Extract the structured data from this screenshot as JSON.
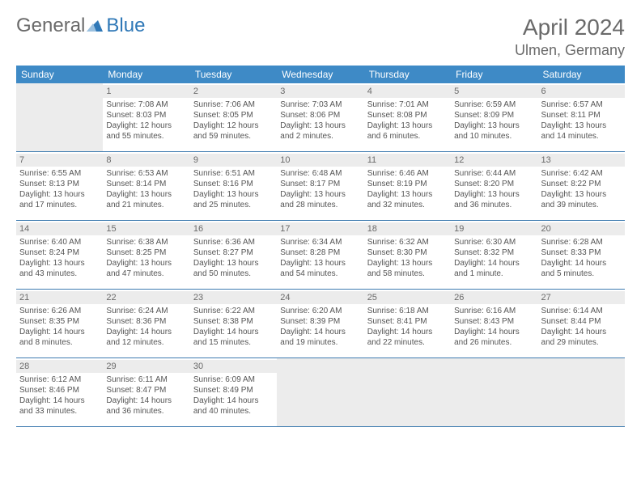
{
  "logo": {
    "text1": "General",
    "text2": "Blue"
  },
  "title": "April 2024",
  "location": "Ulmen, Germany",
  "weekdays": [
    "Sunday",
    "Monday",
    "Tuesday",
    "Wednesday",
    "Thursday",
    "Friday",
    "Saturday"
  ],
  "colors": {
    "header_bg": "#3e8ac6",
    "header_text": "#ffffff",
    "rule": "#3e7bb0",
    "daynum_bg": "#ececec",
    "text": "#555555",
    "logo_gray": "#6a6a6a",
    "logo_blue": "#2f78b7"
  },
  "weeks": [
    [
      {
        "empty": true
      },
      {
        "day": "1",
        "sunrise": "Sunrise: 7:08 AM",
        "sunset": "Sunset: 8:03 PM",
        "daylight1": "Daylight: 12 hours",
        "daylight2": "and 55 minutes."
      },
      {
        "day": "2",
        "sunrise": "Sunrise: 7:06 AM",
        "sunset": "Sunset: 8:05 PM",
        "daylight1": "Daylight: 12 hours",
        "daylight2": "and 59 minutes."
      },
      {
        "day": "3",
        "sunrise": "Sunrise: 7:03 AM",
        "sunset": "Sunset: 8:06 PM",
        "daylight1": "Daylight: 13 hours",
        "daylight2": "and 2 minutes."
      },
      {
        "day": "4",
        "sunrise": "Sunrise: 7:01 AM",
        "sunset": "Sunset: 8:08 PM",
        "daylight1": "Daylight: 13 hours",
        "daylight2": "and 6 minutes."
      },
      {
        "day": "5",
        "sunrise": "Sunrise: 6:59 AM",
        "sunset": "Sunset: 8:09 PM",
        "daylight1": "Daylight: 13 hours",
        "daylight2": "and 10 minutes."
      },
      {
        "day": "6",
        "sunrise": "Sunrise: 6:57 AM",
        "sunset": "Sunset: 8:11 PM",
        "daylight1": "Daylight: 13 hours",
        "daylight2": "and 14 minutes."
      }
    ],
    [
      {
        "day": "7",
        "sunrise": "Sunrise: 6:55 AM",
        "sunset": "Sunset: 8:13 PM",
        "daylight1": "Daylight: 13 hours",
        "daylight2": "and 17 minutes."
      },
      {
        "day": "8",
        "sunrise": "Sunrise: 6:53 AM",
        "sunset": "Sunset: 8:14 PM",
        "daylight1": "Daylight: 13 hours",
        "daylight2": "and 21 minutes."
      },
      {
        "day": "9",
        "sunrise": "Sunrise: 6:51 AM",
        "sunset": "Sunset: 8:16 PM",
        "daylight1": "Daylight: 13 hours",
        "daylight2": "and 25 minutes."
      },
      {
        "day": "10",
        "sunrise": "Sunrise: 6:48 AM",
        "sunset": "Sunset: 8:17 PM",
        "daylight1": "Daylight: 13 hours",
        "daylight2": "and 28 minutes."
      },
      {
        "day": "11",
        "sunrise": "Sunrise: 6:46 AM",
        "sunset": "Sunset: 8:19 PM",
        "daylight1": "Daylight: 13 hours",
        "daylight2": "and 32 minutes."
      },
      {
        "day": "12",
        "sunrise": "Sunrise: 6:44 AM",
        "sunset": "Sunset: 8:20 PM",
        "daylight1": "Daylight: 13 hours",
        "daylight2": "and 36 minutes."
      },
      {
        "day": "13",
        "sunrise": "Sunrise: 6:42 AM",
        "sunset": "Sunset: 8:22 PM",
        "daylight1": "Daylight: 13 hours",
        "daylight2": "and 39 minutes."
      }
    ],
    [
      {
        "day": "14",
        "sunrise": "Sunrise: 6:40 AM",
        "sunset": "Sunset: 8:24 PM",
        "daylight1": "Daylight: 13 hours",
        "daylight2": "and 43 minutes."
      },
      {
        "day": "15",
        "sunrise": "Sunrise: 6:38 AM",
        "sunset": "Sunset: 8:25 PM",
        "daylight1": "Daylight: 13 hours",
        "daylight2": "and 47 minutes."
      },
      {
        "day": "16",
        "sunrise": "Sunrise: 6:36 AM",
        "sunset": "Sunset: 8:27 PM",
        "daylight1": "Daylight: 13 hours",
        "daylight2": "and 50 minutes."
      },
      {
        "day": "17",
        "sunrise": "Sunrise: 6:34 AM",
        "sunset": "Sunset: 8:28 PM",
        "daylight1": "Daylight: 13 hours",
        "daylight2": "and 54 minutes."
      },
      {
        "day": "18",
        "sunrise": "Sunrise: 6:32 AM",
        "sunset": "Sunset: 8:30 PM",
        "daylight1": "Daylight: 13 hours",
        "daylight2": "and 58 minutes."
      },
      {
        "day": "19",
        "sunrise": "Sunrise: 6:30 AM",
        "sunset": "Sunset: 8:32 PM",
        "daylight1": "Daylight: 14 hours",
        "daylight2": "and 1 minute."
      },
      {
        "day": "20",
        "sunrise": "Sunrise: 6:28 AM",
        "sunset": "Sunset: 8:33 PM",
        "daylight1": "Daylight: 14 hours",
        "daylight2": "and 5 minutes."
      }
    ],
    [
      {
        "day": "21",
        "sunrise": "Sunrise: 6:26 AM",
        "sunset": "Sunset: 8:35 PM",
        "daylight1": "Daylight: 14 hours",
        "daylight2": "and 8 minutes."
      },
      {
        "day": "22",
        "sunrise": "Sunrise: 6:24 AM",
        "sunset": "Sunset: 8:36 PM",
        "daylight1": "Daylight: 14 hours",
        "daylight2": "and 12 minutes."
      },
      {
        "day": "23",
        "sunrise": "Sunrise: 6:22 AM",
        "sunset": "Sunset: 8:38 PM",
        "daylight1": "Daylight: 14 hours",
        "daylight2": "and 15 minutes."
      },
      {
        "day": "24",
        "sunrise": "Sunrise: 6:20 AM",
        "sunset": "Sunset: 8:39 PM",
        "daylight1": "Daylight: 14 hours",
        "daylight2": "and 19 minutes."
      },
      {
        "day": "25",
        "sunrise": "Sunrise: 6:18 AM",
        "sunset": "Sunset: 8:41 PM",
        "daylight1": "Daylight: 14 hours",
        "daylight2": "and 22 minutes."
      },
      {
        "day": "26",
        "sunrise": "Sunrise: 6:16 AM",
        "sunset": "Sunset: 8:43 PM",
        "daylight1": "Daylight: 14 hours",
        "daylight2": "and 26 minutes."
      },
      {
        "day": "27",
        "sunrise": "Sunrise: 6:14 AM",
        "sunset": "Sunset: 8:44 PM",
        "daylight1": "Daylight: 14 hours",
        "daylight2": "and 29 minutes."
      }
    ],
    [
      {
        "day": "28",
        "sunrise": "Sunrise: 6:12 AM",
        "sunset": "Sunset: 8:46 PM",
        "daylight1": "Daylight: 14 hours",
        "daylight2": "and 33 minutes."
      },
      {
        "day": "29",
        "sunrise": "Sunrise: 6:11 AM",
        "sunset": "Sunset: 8:47 PM",
        "daylight1": "Daylight: 14 hours",
        "daylight2": "and 36 minutes."
      },
      {
        "day": "30",
        "sunrise": "Sunrise: 6:09 AM",
        "sunset": "Sunset: 8:49 PM",
        "daylight1": "Daylight: 14 hours",
        "daylight2": "and 40 minutes."
      },
      {
        "empty": true
      },
      {
        "empty": true
      },
      {
        "empty": true
      },
      {
        "empty": true
      }
    ]
  ]
}
